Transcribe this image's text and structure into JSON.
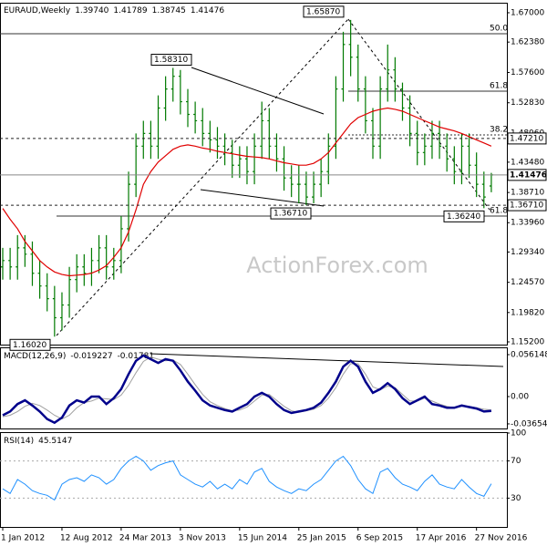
{
  "chart_data": [
    {
      "type": "ohlc",
      "title": "EURAUD,Weekly",
      "header_values": [
        {
          "value": 1.3974,
          "label": "1.39740"
        },
        {
          "value": 1.41789,
          "label": "1.41789"
        },
        {
          "value": 1.38745,
          "label": "1.38745"
        },
        {
          "value": 1.41476,
          "label": "1.41476"
        }
      ],
      "categories": [
        "1 Jan 2012",
        null,
        null,
        null,
        null,
        null,
        null,
        null,
        "12 Aug 2012",
        null,
        null,
        null,
        null,
        null,
        null,
        null,
        "24 Mar 2013",
        null,
        null,
        null,
        null,
        null,
        null,
        null,
        "3 Nov 2013",
        null,
        null,
        null,
        null,
        null,
        null,
        null,
        "15 Jun 2014",
        null,
        null,
        null,
        null,
        null,
        null,
        null,
        "25 Jan 2015",
        null,
        null,
        null,
        null,
        null,
        null,
        null,
        "6 Sep 2015",
        null,
        null,
        null,
        null,
        null,
        null,
        null,
        "17 Apr 2016",
        null,
        null,
        null,
        null,
        null,
        null,
        null,
        "27 Nov 2016",
        null,
        null
      ],
      "open": [
        1.27,
        1.28,
        1.27,
        1.3,
        1.29,
        1.26,
        1.24,
        1.22,
        1.19,
        1.21,
        1.25,
        1.27,
        1.26,
        1.28,
        1.3,
        1.27,
        1.28,
        1.33,
        1.4,
        1.46,
        1.48,
        1.46,
        1.52,
        1.55,
        1.57,
        1.53,
        1.51,
        1.5,
        1.48,
        1.47,
        1.46,
        1.45,
        1.43,
        1.44,
        1.42,
        1.46,
        1.5,
        1.46,
        1.44,
        1.41,
        1.4,
        1.4,
        1.38,
        1.4,
        1.42,
        1.46,
        1.55,
        1.62,
        1.6,
        1.55,
        1.5,
        1.46,
        1.55,
        1.58,
        1.55,
        1.52,
        1.48,
        1.45,
        1.46,
        1.48,
        1.46,
        1.44,
        1.42,
        1.46,
        1.43,
        1.4,
        1.3974
      ],
      "high": [
        1.3,
        1.3,
        1.32,
        1.32,
        1.31,
        1.28,
        1.26,
        1.24,
        1.23,
        1.27,
        1.29,
        1.29,
        1.3,
        1.32,
        1.32,
        1.3,
        1.35,
        1.42,
        1.48,
        1.5,
        1.5,
        1.54,
        1.57,
        1.5831,
        1.58,
        1.55,
        1.53,
        1.52,
        1.5,
        1.49,
        1.48,
        1.47,
        1.46,
        1.46,
        1.48,
        1.53,
        1.52,
        1.48,
        1.46,
        1.43,
        1.43,
        1.42,
        1.42,
        1.44,
        1.48,
        1.57,
        1.64,
        1.6587,
        1.62,
        1.57,
        1.52,
        1.57,
        1.62,
        1.6,
        1.56,
        1.54,
        1.5,
        1.48,
        1.5,
        1.5,
        1.48,
        1.46,
        1.48,
        1.48,
        1.45,
        1.42,
        1.41789
      ],
      "low": [
        1.25,
        1.25,
        1.25,
        1.27,
        1.24,
        1.22,
        1.2,
        1.1602,
        1.17,
        1.19,
        1.23,
        1.24,
        1.24,
        1.26,
        1.25,
        1.25,
        1.26,
        1.31,
        1.38,
        1.44,
        1.44,
        1.44,
        1.5,
        1.53,
        1.51,
        1.49,
        1.48,
        1.46,
        1.45,
        1.44,
        1.43,
        1.41,
        1.41,
        1.4,
        1.4,
        1.44,
        1.44,
        1.42,
        1.39,
        1.38,
        1.37,
        1.3671,
        1.37,
        1.38,
        1.4,
        1.44,
        1.53,
        1.57,
        1.53,
        1.48,
        1.44,
        1.44,
        1.53,
        1.53,
        1.5,
        1.46,
        1.43,
        1.43,
        1.44,
        1.44,
        1.42,
        1.4,
        1.4,
        1.41,
        1.38,
        1.3624,
        1.38745
      ],
      "close": [
        1.28,
        1.27,
        1.3,
        1.29,
        1.26,
        1.24,
        1.22,
        1.19,
        1.21,
        1.25,
        1.27,
        1.26,
        1.28,
        1.3,
        1.27,
        1.28,
        1.33,
        1.4,
        1.46,
        1.48,
        1.46,
        1.52,
        1.55,
        1.57,
        1.53,
        1.51,
        1.5,
        1.48,
        1.47,
        1.46,
        1.45,
        1.43,
        1.44,
        1.42,
        1.46,
        1.5,
        1.46,
        1.44,
        1.41,
        1.4,
        1.4,
        1.38,
        1.4,
        1.42,
        1.46,
        1.55,
        1.62,
        1.6,
        1.55,
        1.5,
        1.46,
        1.55,
        1.58,
        1.55,
        1.52,
        1.48,
        1.45,
        1.46,
        1.48,
        1.46,
        1.44,
        1.42,
        1.46,
        1.43,
        1.4,
        1.38,
        1.41476
      ],
      "color": "#007a00",
      "ma": {
        "color": "#e00000",
        "values": [
          1.362,
          1.345,
          1.33,
          1.31,
          1.295,
          1.28,
          1.27,
          1.262,
          1.258,
          1.256,
          1.257,
          1.258,
          1.26,
          1.265,
          1.272,
          1.285,
          1.3,
          1.325,
          1.36,
          1.4,
          1.42,
          1.435,
          1.445,
          1.455,
          1.46,
          1.462,
          1.46,
          1.457,
          1.455,
          1.452,
          1.45,
          1.448,
          1.446,
          1.444,
          1.443,
          1.442,
          1.44,
          1.437,
          1.434,
          1.432,
          1.43,
          1.43,
          1.433,
          1.44,
          1.45,
          1.465,
          1.48,
          1.495,
          1.505,
          1.51,
          1.515,
          1.518,
          1.52,
          1.518,
          1.515,
          1.51,
          1.505,
          1.5,
          1.495,
          1.49,
          1.487,
          1.484,
          1.48,
          1.475,
          1.47,
          1.465,
          1.46
        ]
      },
      "ylim": [
        1.1477,
        1.6843
      ],
      "yticks": [
        {
          "value": 1.67,
          "label": "1.67000"
        },
        {
          "value": 1.6238,
          "label": "1.62380"
        },
        {
          "value": 1.576,
          "label": "1.57600"
        },
        {
          "value": 1.5283,
          "label": "1.52830"
        },
        {
          "value": 1.4806,
          "label": "1.48060"
        },
        {
          "value": 1.4348,
          "label": "1.43480"
        },
        {
          "value": 1.3871,
          "label": "1.38710"
        },
        {
          "value": 1.3396,
          "label": "1.33960"
        },
        {
          "value": 1.2934,
          "label": "1.29340"
        },
        {
          "value": 1.2457,
          "label": "1.24570"
        },
        {
          "value": 1.1982,
          "label": "1.19820"
        },
        {
          "value": 1.152,
          "label": "1.15200"
        }
      ],
      "annotations": [
        {
          "value": 1.6587,
          "label": "1.65870"
        },
        {
          "value": 1.5831,
          "label": "1.58310"
        },
        {
          "value": 1.3671,
          "label": "1.36710"
        },
        {
          "value": 1.3624,
          "label": "1.36240"
        },
        {
          "value": 1.1602,
          "label": "1.16020"
        }
      ],
      "levels": [
        {
          "value": 1.4721,
          "label": "1.47210"
        },
        {
          "value": 1.41476,
          "label": "1.41476"
        },
        {
          "value": 1.3671,
          "label": "1.36710"
        }
      ],
      "fib_labels": [
        "50.0",
        "61.8",
        "38.2",
        "61.8"
      ],
      "watermark": "ActionForex.com"
    },
    {
      "type": "macd",
      "title": "MACD(12,26,9)",
      "title_values": [
        -0.019227,
        -0.01781
      ],
      "ylim": [
        -0.0427,
        0.0647
      ],
      "yticks": [
        0.056148,
        {
          "value": 0,
          "label": "0.00"
        },
        -0.036548
      ],
      "series": [
        {
          "color": "#00008b",
          "values": [
            -0.025,
            -0.02,
            -0.01,
            -0.005,
            -0.012,
            -0.02,
            -0.03,
            -0.035,
            -0.028,
            -0.012,
            -0.005,
            -0.008,
            0.0,
            0.0,
            -0.01,
            -0.002,
            0.01,
            0.03,
            0.048,
            0.055,
            0.05,
            0.045,
            0.05,
            0.048,
            0.035,
            0.02,
            0.008,
            -0.005,
            -0.012,
            -0.015,
            -0.018,
            -0.02,
            -0.015,
            -0.01,
            0.0,
            0.005,
            0.0,
            -0.01,
            -0.018,
            -0.022,
            -0.02,
            -0.018,
            -0.015,
            -0.008,
            0.005,
            0.02,
            0.04,
            0.048,
            0.04,
            0.02,
            0.005,
            0.01,
            0.018,
            0.01,
            -0.002,
            -0.01,
            -0.005,
            0.0,
            -0.01,
            -0.012,
            -0.015,
            -0.015,
            -0.012,
            -0.014,
            -0.016,
            -0.02,
            -0.019227
          ]
        },
        {
          "color": "#a0a0a0",
          "values": [
            -0.027,
            -0.025,
            -0.02,
            -0.013,
            -0.009,
            -0.012,
            -0.018,
            -0.025,
            -0.03,
            -0.025,
            -0.015,
            -0.008,
            -0.006,
            -0.002,
            -0.003,
            -0.004,
            0.002,
            0.015,
            0.032,
            0.047,
            0.053,
            0.05,
            0.048,
            0.049,
            0.043,
            0.03,
            0.016,
            0.003,
            -0.007,
            -0.012,
            -0.016,
            -0.019,
            -0.018,
            -0.014,
            -0.006,
            0.002,
            0.003,
            -0.005,
            -0.013,
            -0.019,
            -0.021,
            -0.019,
            -0.017,
            -0.012,
            -0.002,
            0.012,
            0.03,
            0.044,
            0.044,
            0.03,
            0.013,
            0.009,
            0.014,
            0.012,
            0.003,
            -0.006,
            -0.006,
            -0.002,
            -0.006,
            -0.01,
            -0.013,
            -0.015,
            -0.013,
            -0.013,
            -0.015,
            -0.017,
            -0.01781
          ]
        }
      ]
    },
    {
      "type": "rsi",
      "title": "RSI(14)",
      "title_values": [
        45.5147
      ],
      "ylim": [
        0,
        100
      ],
      "yticks": [
        100,
        70,
        30
      ],
      "series": [
        {
          "color": "#1e90ff",
          "values": [
            40,
            35,
            50,
            45,
            38,
            35,
            33,
            28,
            45,
            50,
            52,
            48,
            55,
            52,
            45,
            50,
            62,
            70,
            75,
            70,
            60,
            65,
            68,
            70,
            55,
            50,
            45,
            42,
            48,
            40,
            45,
            40,
            50,
            45,
            58,
            62,
            48,
            42,
            38,
            35,
            40,
            38,
            45,
            50,
            60,
            70,
            75,
            65,
            50,
            40,
            35,
            58,
            62,
            52,
            45,
            42,
            38,
            48,
            55,
            45,
            42,
            40,
            50,
            42,
            35,
            32,
            45.5147
          ]
        }
      ]
    }
  ]
}
